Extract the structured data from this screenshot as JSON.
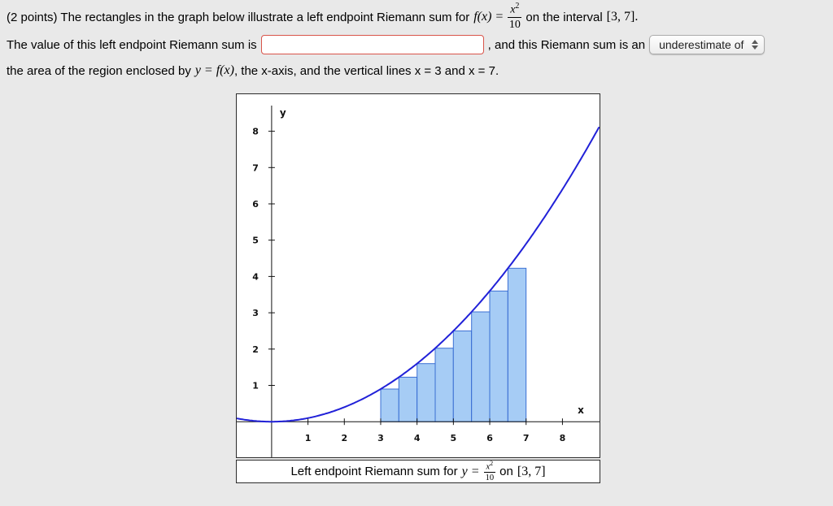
{
  "page": {
    "background": "#e9e9e9"
  },
  "problem": {
    "line1": {
      "pre": "(2 points) The rectangles in the graph below illustrate a left endpoint Riemann sum for",
      "math_lhs": "f(x) =",
      "frac": {
        "num_base": "x",
        "num_sup": "2",
        "den": "10"
      },
      "post_plain": "on the interval",
      "post_math": "[3, 7]."
    },
    "line2": {
      "pre": "The value of this left endpoint Riemann sum is",
      "answer": {
        "value": "",
        "placeholder": ""
      },
      "mid": ", and this Riemann sum is an",
      "dropdown": {
        "selected": "underestimate of"
      }
    },
    "line3": {
      "pre": "the area of the region enclosed by",
      "math": "y = f(x)",
      "post": ", the x-axis, and the vertical lines x = 3 and x = 7."
    }
  },
  "caption": {
    "pre": "Left endpoint Riemann sum for",
    "math_lhs": "y =",
    "frac": {
      "num_base": "x",
      "num_sup": "2",
      "den": "10"
    },
    "mid": "on",
    "interval": "[3, 7]"
  },
  "chart_data": {
    "type": "area",
    "title": "Left endpoint Riemann sum for y = x^2/10 on [3,7]",
    "function": "y = x^2 / 10",
    "xlabel": "x",
    "ylabel": "y",
    "xlim": [
      -0.96,
      9.02
    ],
    "ylim": [
      -0.98,
      9.02
    ],
    "x_ticks": [
      1,
      2,
      3,
      4,
      5,
      6,
      7,
      8
    ],
    "y_ticks": [
      1,
      2,
      3,
      4,
      5,
      6,
      7,
      8
    ],
    "grid": false,
    "legend": false,
    "curve": {
      "coeff": 0.1,
      "power": 2,
      "x_start": -1.0,
      "x_end": 9.0,
      "color": "#2121d8",
      "width": 2
    },
    "riemann": {
      "method": "left",
      "interval": [
        3,
        7
      ],
      "n": 8,
      "dx": 0.5,
      "left_endpoints": [
        3,
        3.5,
        4,
        4.5,
        5,
        5.5,
        6,
        6.5
      ],
      "heights": [
        0.9,
        1.225,
        1.6,
        2.025,
        2.5,
        3.025,
        3.6,
        4.225
      ],
      "fill": "#a6ccf5",
      "stroke": "#3b6fd4"
    }
  }
}
